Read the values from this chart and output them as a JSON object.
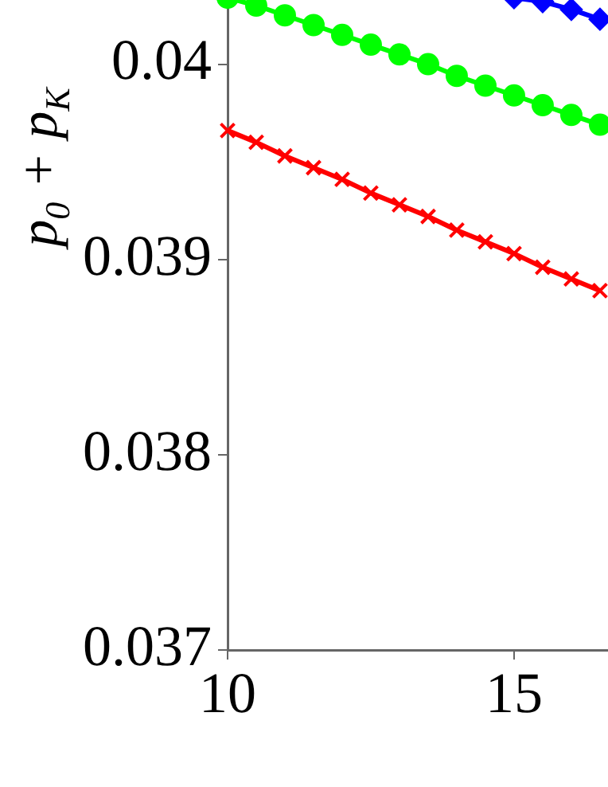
{
  "chart_data": {
    "type": "line",
    "ylabel": "p$_{0}$ + p$_{K}$",
    "x": [
      10,
      10.5,
      11,
      11.5,
      12,
      12.5,
      13,
      13.5,
      14,
      14.5,
      15,
      15.5,
      16,
      16.5
    ],
    "series": [
      {
        "color": "#0000ff",
        "marker": "diamond",
        "values": [
          null,
          null,
          null,
          null,
          null,
          null,
          null,
          null,
          null,
          null,
          0.04034,
          0.04032,
          0.04028,
          0.04023
        ]
      },
      {
        "color": "#00ff00",
        "marker": "circle",
        "values": [
          0.04034,
          0.0403,
          0.04025,
          0.0402,
          0.04015,
          0.0401,
          0.04005,
          0.04,
          0.03994,
          0.03989,
          0.03984,
          0.03979,
          0.03974,
          0.03969
        ]
      },
      {
        "color": "#ff0000",
        "marker": "cross",
        "values": [
          0.03966,
          0.0396,
          0.03953,
          0.03947,
          0.03941,
          0.03934,
          0.03928,
          0.03922,
          0.03915,
          0.03909,
          0.03903,
          0.03896,
          0.0389,
          0.03884
        ]
      }
    ],
    "xlim": [
      10,
      16.64
    ],
    "xticks": [
      10,
      15
    ],
    "ylim": [
      0.037,
      0.04034
    ],
    "yticks": [
      0.037,
      0.038,
      0.039,
      0.04
    ],
    "grid": false,
    "legend": false,
    "line_style": "solid"
  }
}
